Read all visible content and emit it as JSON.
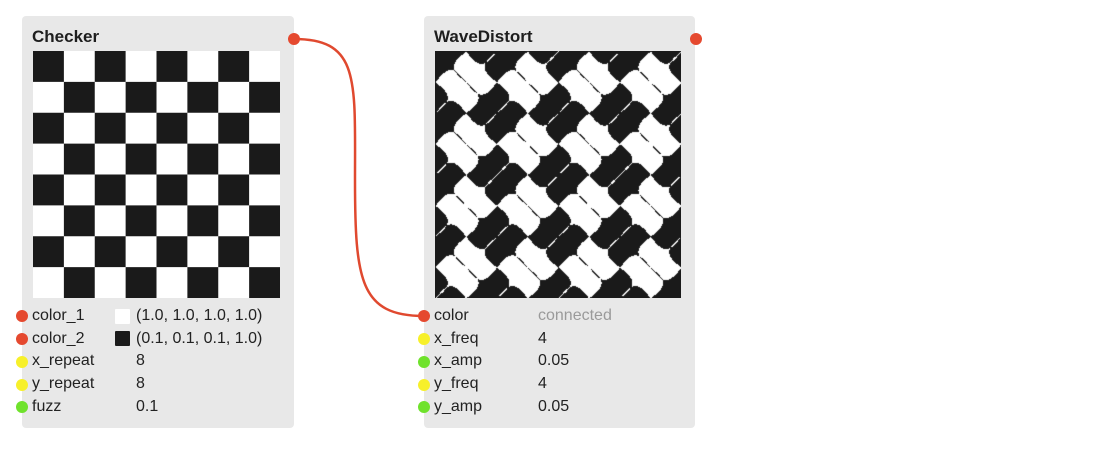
{
  "colors": {
    "socket_color": "#e5492f",
    "socket_int": "#f7f02a",
    "socket_float": "#6fe22c",
    "wire": "#e0492f",
    "pattern_dark": "#1a1a1a",
    "pattern_light": "#ffffff"
  },
  "nodes": {
    "checker": {
      "title": "Checker",
      "params": [
        {
          "label": "color_1",
          "type": "color",
          "swatch": "#ffffff",
          "value": "(1.0, 1.0, 1.0, 1.0)"
        },
        {
          "label": "color_2",
          "type": "color",
          "swatch": "#1a1a1a",
          "value": "(0.1, 0.1, 0.1, 1.0)"
        },
        {
          "label": "x_repeat",
          "type": "int",
          "value": "8"
        },
        {
          "label": "y_repeat",
          "type": "int",
          "value": "8"
        },
        {
          "label": "fuzz",
          "type": "float",
          "value": "0.1"
        }
      ]
    },
    "wave": {
      "title": "WaveDistort",
      "params": [
        {
          "label": "color",
          "type": "color",
          "value": "connected",
          "muted": true
        },
        {
          "label": "x_freq",
          "type": "int",
          "value": "4"
        },
        {
          "label": "x_amp",
          "type": "float",
          "value": "0.05"
        },
        {
          "label": "y_freq",
          "type": "int",
          "value": "4"
        },
        {
          "label": "y_amp",
          "type": "float",
          "value": "0.05"
        }
      ]
    }
  }
}
